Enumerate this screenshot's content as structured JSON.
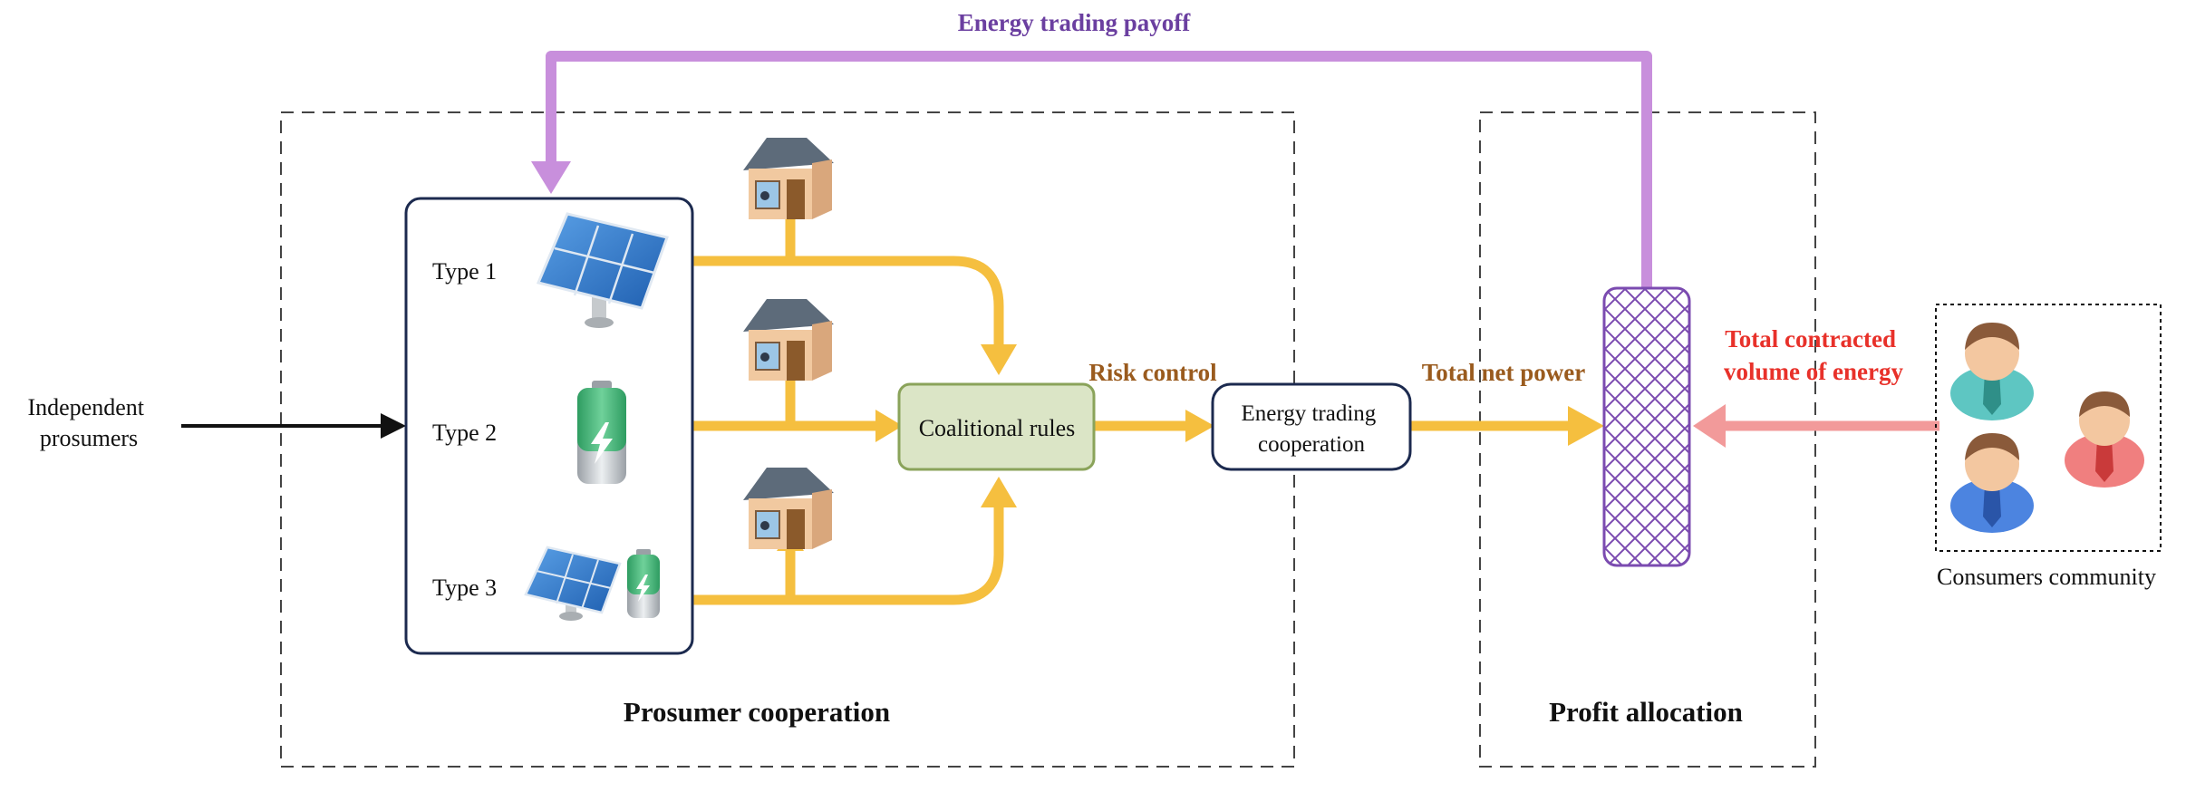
{
  "title": "Energy trading payoff",
  "input": {
    "line1": "Independent",
    "line2": "prosumers"
  },
  "types": [
    {
      "label": "Type 1",
      "icon": "solar-panel-icon"
    },
    {
      "label": "Type 2",
      "icon": "battery-icon"
    },
    {
      "label": "Type 3",
      "icon": "solar-panel-battery-icon"
    }
  ],
  "coalitional_rules": "Coalitional rules",
  "risk_control": "Risk control",
  "energy_trading": {
    "line1": "Energy trading",
    "line2": "cooperation"
  },
  "total_net_power": "Total net power",
  "total_contracted": {
    "line1": "Total contracted",
    "line2": "volume of energy"
  },
  "consumers_community": "Consumers community",
  "sections": {
    "prosumer": "Prosumer cooperation",
    "profit": "Profit allocation"
  },
  "colors": {
    "payoff": "#c88fdc",
    "payoff_text": "#6b3fa0",
    "power_flow": "#f5bf3f",
    "risk_text": "#9a5b1e",
    "contract_flow": "#f29a9a",
    "contract_text": "#e8312a",
    "rules_fill": "#dbe5c6",
    "rules_stroke": "#8aa35a",
    "box_stroke": "#1c2a4f",
    "allocation_hatch": "#7b4bb0"
  }
}
